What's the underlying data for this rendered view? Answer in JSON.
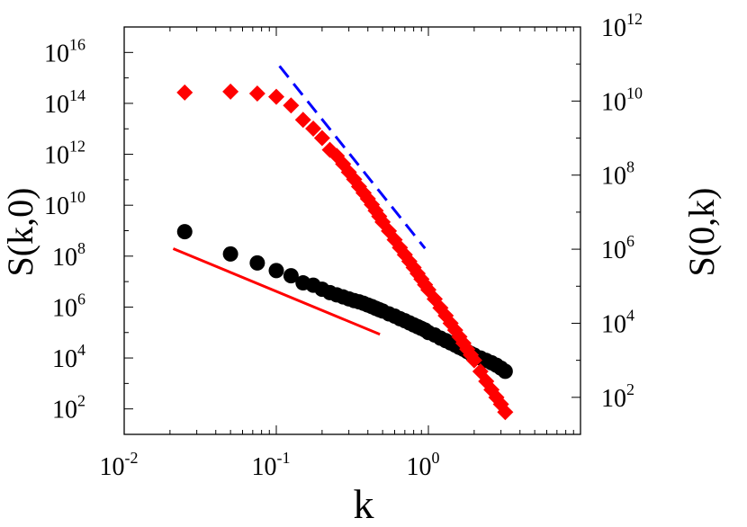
{
  "chart_data": {
    "type": "scatter",
    "title": "",
    "xlabel": "k",
    "ylabel_left": "S(k,0)",
    "ylabel_right": "S(0,k)",
    "x_scale": "log",
    "y_scale_left": "log",
    "y_scale_right": "log",
    "xlim": [
      0.01,
      10
    ],
    "ylim_left": [
      10,
      1e+17
    ],
    "ylim_right": [
      10,
      1000000000000.0
    ],
    "x_ticks": [
      {
        "value": 0.01,
        "base": "10",
        "exp": "-2"
      },
      {
        "value": 0.1,
        "base": "10",
        "exp": "-1"
      },
      {
        "value": 1,
        "base": "10",
        "exp": "0"
      }
    ],
    "y_ticks_left": [
      {
        "value": 100.0,
        "base": "10",
        "exp": "2"
      },
      {
        "value": 10000.0,
        "base": "10",
        "exp": "4"
      },
      {
        "value": 1000000.0,
        "base": "10",
        "exp": "6"
      },
      {
        "value": 100000000.0,
        "base": "10",
        "exp": "8"
      },
      {
        "value": 10000000000.0,
        "base": "10",
        "exp": "10"
      },
      {
        "value": 1000000000000.0,
        "base": "10",
        "exp": "12"
      },
      {
        "value": 100000000000000.0,
        "base": "10",
        "exp": "14"
      },
      {
        "value": 1e+16,
        "base": "10",
        "exp": "16"
      }
    ],
    "y_ticks_right": [
      {
        "value": 100.0,
        "base": "10",
        "exp": "2"
      },
      {
        "value": 10000.0,
        "base": "10",
        "exp": "4"
      },
      {
        "value": 1000000.0,
        "base": "10",
        "exp": "6"
      },
      {
        "value": 100000000.0,
        "base": "10",
        "exp": "8"
      },
      {
        "value": 10000000000.0,
        "base": "10",
        "exp": "10"
      },
      {
        "value": 1000000000000.0,
        "base": "10",
        "exp": "12"
      }
    ],
    "grid": false,
    "series": [
      {
        "axis": "left",
        "marker": "circle",
        "color": "#000000",
        "x": [
          0.025,
          0.05,
          0.075,
          0.1,
          0.125,
          0.15,
          0.175,
          0.2,
          0.225,
          0.25,
          0.275,
          0.3,
          0.325,
          0.35,
          0.375,
          0.4,
          0.425,
          0.45,
          0.475,
          0.5,
          0.55,
          0.6,
          0.65,
          0.7,
          0.75,
          0.8,
          0.85,
          0.9,
          0.95,
          1.0,
          1.1,
          1.2,
          1.3,
          1.4,
          1.5,
          1.6,
          1.7,
          1.8,
          1.9,
          2.0,
          2.2,
          2.4,
          2.6,
          2.8,
          3.0,
          3.2
        ],
        "y": [
          912000000.0,
          122000000.0,
          54000000.0,
          27000000.0,
          17000000.0,
          8900000.0,
          7200000.0,
          5000000.0,
          3700000.0,
          3000000.0,
          2500000.0,
          2100000.0,
          1800000.0,
          1600000.0,
          1400000.0,
          1200000.0,
          1050000.0,
          900000.0,
          790000.0,
          700000.0,
          540000.0,
          440000.0,
          350000.0,
          290000.0,
          240000.0,
          200000.0,
          170000.0,
          145000.0,
          125000.0,
          100000.0,
          80000.0,
          60000.0,
          48000.0,
          39000.0,
          32000.0,
          26000.0,
          22000.0,
          18000.0,
          15000.0,
          13000.0,
          10000.0,
          8000.0,
          6500.0,
          5200.0,
          4000.0,
          3000.0
        ]
      },
      {
        "axis": "right",
        "marker": "diamond",
        "color": "#ff0000",
        "x": [
          0.025,
          0.05,
          0.075,
          0.1,
          0.125,
          0.15,
          0.175,
          0.2,
          0.225,
          0.25,
          0.275,
          0.3,
          0.325,
          0.35,
          0.375,
          0.4,
          0.425,
          0.45,
          0.475,
          0.5,
          0.55,
          0.6,
          0.65,
          0.7,
          0.75,
          0.8,
          0.85,
          0.9,
          0.95,
          1.0,
          1.1,
          1.2,
          1.3,
          1.4,
          1.5,
          1.6,
          1.7,
          1.8,
          1.9,
          2.0,
          2.2,
          2.4,
          2.6,
          2.8,
          3.0,
          3.2
        ],
        "y": [
          17000000000.0,
          18000000000.0,
          16000000000.0,
          13000000000.0,
          7600000000.0,
          3100000000.0,
          1800000000.0,
          1000000000.0,
          480000000.0,
          330000000.0,
          200000000.0,
          120000000.0,
          77000000.0,
          49000000.0,
          33000000.0,
          23000000.0,
          16000000.0,
          11000000.0,
          7700000.0,
          5400000.0,
          3100000.0,
          1800000.0,
          1100000.0,
          710000.0,
          470000.0,
          320000.0,
          220000.0,
          155000.0,
          110000.0,
          80000.0,
          45000.0,
          26000.0,
          16000.0,
          10000.0,
          6500.0,
          4300.0,
          2900.0,
          2000.0,
          1400.0,
          1000.0,
          500.0,
          270.0,
          160.0,
          100.0,
          65.0,
          40.0
        ]
      }
    ],
    "reference_lines": [
      {
        "axis": "left",
        "style": "solid",
        "color": "#ff0000",
        "x": [
          0.021,
          0.48
        ],
        "y": [
          197000000.0,
          85000.0
        ]
      },
      {
        "axis": "right",
        "style": "dashed",
        "color": "#0000ff",
        "x": [
          0.105,
          0.95
        ],
        "y": [
          88000000000.0,
          1050000.0
        ]
      }
    ]
  }
}
